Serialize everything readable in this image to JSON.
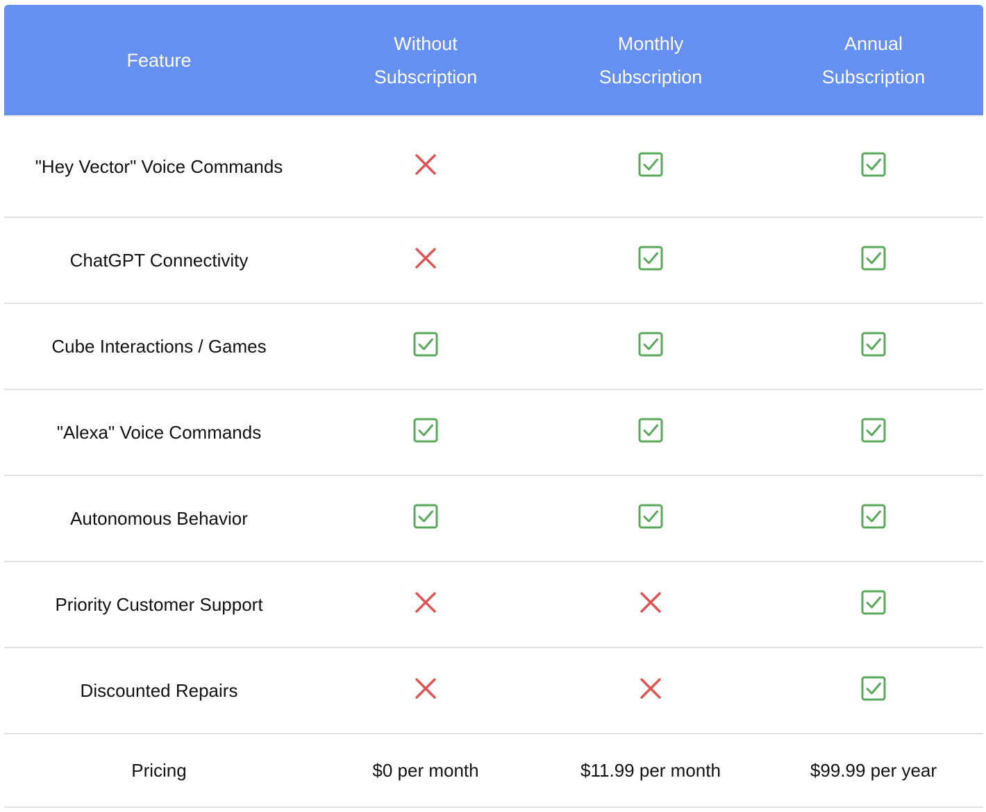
{
  "colors": {
    "header_bg": "#658ff0",
    "header_text": "#ffffff",
    "check": "#5aa85a",
    "cross": "#e05252"
  },
  "icons": {
    "yes": "check-box-icon",
    "no": "cross-icon"
  },
  "header": {
    "feature": "Feature",
    "without_line1": "Without",
    "without_line2": "Subscription",
    "monthly_line1": "Monthly",
    "monthly_line2": "Subscription",
    "annual_line1": "Annual",
    "annual_line2": "Subscription"
  },
  "rows": [
    {
      "feature": "\"Hey Vector\" Voice Commands",
      "without": "no",
      "monthly": "yes",
      "annual": "yes"
    },
    {
      "feature": "ChatGPT Connectivity",
      "without": "no",
      "monthly": "yes",
      "annual": "yes"
    },
    {
      "feature": "Cube Interactions / Games",
      "without": "yes",
      "monthly": "yes",
      "annual": "yes"
    },
    {
      "feature": "\"Alexa\" Voice Commands",
      "without": "yes",
      "monthly": "yes",
      "annual": "yes"
    },
    {
      "feature": "Autonomous Behavior",
      "without": "yes",
      "monthly": "yes",
      "annual": "yes"
    },
    {
      "feature": "Priority Customer Support",
      "without": "no",
      "monthly": "no",
      "annual": "yes"
    },
    {
      "feature": "Discounted Repairs",
      "without": "no",
      "monthly": "no",
      "annual": "yes"
    }
  ],
  "pricing": {
    "label": "Pricing",
    "without": "$0 per month",
    "monthly": "$11.99 per month",
    "annual": "$99.99 per year"
  }
}
